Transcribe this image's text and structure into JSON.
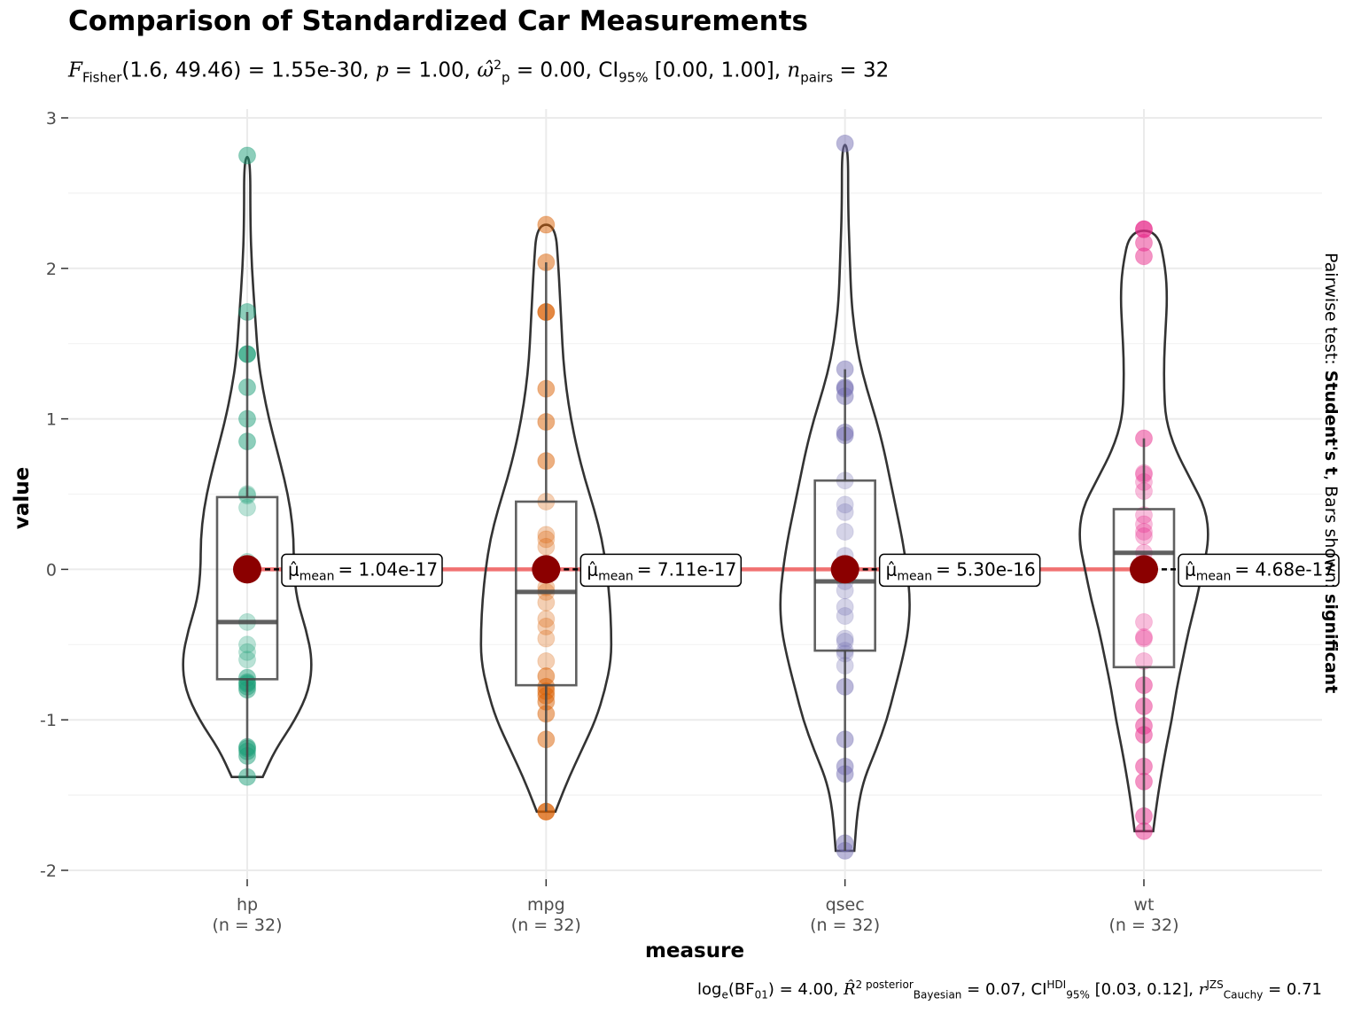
{
  "title": "Comparison of Standardized Car Measurements",
  "subtitle": {
    "f_symbol": "F",
    "f_sub": "Fisher",
    "f_args": "(1.6, 49.46)",
    "f_value": "= 1.55e-30,",
    "p_symbol": "p",
    "p_value": "= 1.00,",
    "omega_symbol": "ω̂",
    "omega_sup": "2",
    "omega_sub": "p",
    "omega_value": "= 0.00,",
    "ci_symbol": "CI",
    "ci_sub": "95%",
    "ci_value": "[0.00, 1.00],",
    "n_symbol": "n",
    "n_sub": "pairs",
    "n_value": "= 32"
  },
  "caption": {
    "bf_text": "log",
    "bf_sub_e": "e",
    "bf_paren": "(BF",
    "bf_sub_01": "01",
    "bf_value": ") = 4.00,",
    "r2_symbol": "R̂",
    "r2_sup": "2 posterior",
    "r2_sub": "Bayesian",
    "r2_value": "= 0.07,",
    "ci_symbol": "CI",
    "ci_sup": "HDI",
    "ci_sub": "95%",
    "ci_value": "[0.03, 0.12],",
    "r_symbol": "r",
    "r_sup": "JZS",
    "r_sub": "Cauchy",
    "r_value": "= 0.71"
  },
  "side_label": {
    "prefix": "Pairwise test: ",
    "test": "Student's t",
    "middle": ", Bars shown: ",
    "bars": "significant"
  },
  "chart_data": {
    "type": "violin",
    "xlabel": "measure",
    "ylabel": "value",
    "ylim": [
      -2,
      3
    ],
    "yticks": [
      -2,
      -1,
      0,
      1,
      2,
      3
    ],
    "ytick_labels": [
      "-2",
      "-1",
      "0",
      "1",
      "2",
      "3"
    ],
    "grid": true,
    "categories": [
      {
        "name": "hp",
        "n_label": "(n = 32)",
        "color": "#1b9e77",
        "mean": 0,
        "mean_label_prefix": "μ̂",
        "mean_label_sub": "mean",
        "mean_label_value": "= 1.04e-17",
        "box": {
          "q1": -0.73,
          "median": -0.35,
          "q3": 0.48,
          "whisker_low": -1.38,
          "whisker_high": 1.71
        },
        "violin": [
          [
            -1.38,
            0.1
          ],
          [
            -1.2,
            0.18
          ],
          [
            -1.0,
            0.31
          ],
          [
            -0.8,
            0.4
          ],
          [
            -0.6,
            0.42
          ],
          [
            -0.4,
            0.38
          ],
          [
            -0.2,
            0.32
          ],
          [
            0.0,
            0.3
          ],
          [
            0.2,
            0.3
          ],
          [
            0.4,
            0.28
          ],
          [
            0.6,
            0.24
          ],
          [
            0.8,
            0.19
          ],
          [
            1.0,
            0.14
          ],
          [
            1.2,
            0.1
          ],
          [
            1.4,
            0.07
          ],
          [
            1.7,
            0.05
          ],
          [
            2.0,
            0.03
          ],
          [
            2.3,
            0.02
          ],
          [
            2.74,
            0.02
          ]
        ],
        "points": [
          2.75,
          1.71,
          1.43,
          1.43,
          1.21,
          1.0,
          0.85,
          0.5,
          0.49,
          0.41,
          0.05,
          -0.35,
          -0.5,
          -0.55,
          -0.6,
          -0.72,
          -0.75,
          -0.76,
          -0.78,
          -0.8,
          -1.18,
          -1.19,
          -1.21,
          -1.24,
          -1.38
        ]
      },
      {
        "name": "mpg",
        "n_label": "(n = 32)",
        "color": "#d95f02",
        "mean": 0,
        "mean_label_prefix": "μ̂",
        "mean_label_sub": "mean",
        "mean_label_value": "= 7.11e-17",
        "box": {
          "q1": -0.77,
          "median": -0.15,
          "q3": 0.45,
          "whisker_low": -1.61,
          "whisker_high": 2.04
        },
        "violin": [
          [
            -1.61,
            0.06
          ],
          [
            -1.4,
            0.14
          ],
          [
            -1.2,
            0.23
          ],
          [
            -1.0,
            0.32
          ],
          [
            -0.8,
            0.38
          ],
          [
            -0.6,
            0.42
          ],
          [
            -0.4,
            0.42
          ],
          [
            -0.2,
            0.41
          ],
          [
            0.0,
            0.39
          ],
          [
            0.2,
            0.36
          ],
          [
            0.4,
            0.31
          ],
          [
            0.6,
            0.25
          ],
          [
            0.8,
            0.2
          ],
          [
            1.0,
            0.16
          ],
          [
            1.2,
            0.13
          ],
          [
            1.4,
            0.11
          ],
          [
            1.6,
            0.1
          ],
          [
            1.8,
            0.09
          ],
          [
            2.0,
            0.08
          ],
          [
            2.29,
            0.06
          ]
        ],
        "points": [
          2.29,
          2.04,
          1.71,
          1.71,
          1.2,
          0.98,
          0.72,
          0.45,
          0.23,
          0.2,
          0.15,
          -0.12,
          -0.15,
          -0.22,
          -0.33,
          -0.38,
          -0.46,
          -0.61,
          -0.71,
          -0.78,
          -0.81,
          -0.84,
          -0.88,
          -0.96,
          -1.13,
          -1.61,
          -1.61
        ]
      },
      {
        "name": "qsec",
        "n_label": "(n = 32)",
        "color": "#7570b3",
        "mean": 0,
        "mean_label_prefix": "μ̂",
        "mean_label_sub": "mean",
        "mean_label_value": "= 5.30e-16",
        "box": {
          "q1": -0.54,
          "median": -0.08,
          "q3": 0.59,
          "whisker_low": -1.87,
          "whisker_high": 1.33
        },
        "violin": [
          [
            -1.87,
            0.06
          ],
          [
            -1.6,
            0.08
          ],
          [
            -1.4,
            0.12
          ],
          [
            -1.2,
            0.2
          ],
          [
            -1.0,
            0.27
          ],
          [
            -0.8,
            0.32
          ],
          [
            -0.6,
            0.37
          ],
          [
            -0.4,
            0.41
          ],
          [
            -0.2,
            0.42
          ],
          [
            0.0,
            0.4
          ],
          [
            0.2,
            0.37
          ],
          [
            0.4,
            0.33
          ],
          [
            0.6,
            0.29
          ],
          [
            0.8,
            0.25
          ],
          [
            1.0,
            0.2
          ],
          [
            1.2,
            0.14
          ],
          [
            1.4,
            0.09
          ],
          [
            1.6,
            0.06
          ],
          [
            1.8,
            0.04
          ],
          [
            2.1,
            0.03
          ],
          [
            2.4,
            0.02
          ],
          [
            2.82,
            0.02
          ]
        ],
        "points": [
          2.83,
          1.33,
          1.21,
          1.2,
          1.15,
          0.91,
          0.89,
          0.59,
          0.43,
          0.38,
          0.25,
          0.09,
          -0.08,
          -0.14,
          -0.25,
          -0.31,
          -0.46,
          -0.48,
          -0.54,
          -0.56,
          -0.64,
          -0.78,
          -1.13,
          -1.31,
          -1.36,
          -1.82,
          -1.87
        ]
      },
      {
        "name": "wt",
        "n_label": "(n = 32)",
        "color": "#e7298a",
        "mean": 0,
        "mean_label_prefix": "μ̂",
        "mean_label_sub": "mean",
        "mean_label_value": "= 4.68e-17",
        "box": {
          "q1": -0.65,
          "median": 0.11,
          "q3": 0.4,
          "whisker_low": -1.74,
          "whisker_high": 0.87
        },
        "violin": [
          [
            -1.74,
            0.06
          ],
          [
            -1.5,
            0.09
          ],
          [
            -1.2,
            0.14
          ],
          [
            -1.0,
            0.18
          ],
          [
            -0.8,
            0.21
          ],
          [
            -0.6,
            0.25
          ],
          [
            -0.4,
            0.29
          ],
          [
            -0.2,
            0.34
          ],
          [
            0.0,
            0.38
          ],
          [
            0.2,
            0.42
          ],
          [
            0.4,
            0.4
          ],
          [
            0.6,
            0.3
          ],
          [
            0.8,
            0.2
          ],
          [
            1.0,
            0.14
          ],
          [
            1.2,
            0.13
          ],
          [
            1.4,
            0.13
          ],
          [
            1.6,
            0.14
          ],
          [
            1.8,
            0.15
          ],
          [
            2.0,
            0.14
          ],
          [
            2.25,
            0.09
          ]
        ],
        "points": [
          2.26,
          2.26,
          2.17,
          2.08,
          0.87,
          0.64,
          0.63,
          0.58,
          0.52,
          0.36,
          0.3,
          0.25,
          0.22,
          0.11,
          -0.03,
          -0.35,
          -0.45,
          -0.46,
          -0.61,
          -0.77,
          -0.91,
          -1.04,
          -1.1,
          -1.31,
          -1.41,
          -1.64,
          -1.74
        ]
      }
    ],
    "mean_line_color": "#f05a5a",
    "mean_point_color": "#8b0000"
  }
}
